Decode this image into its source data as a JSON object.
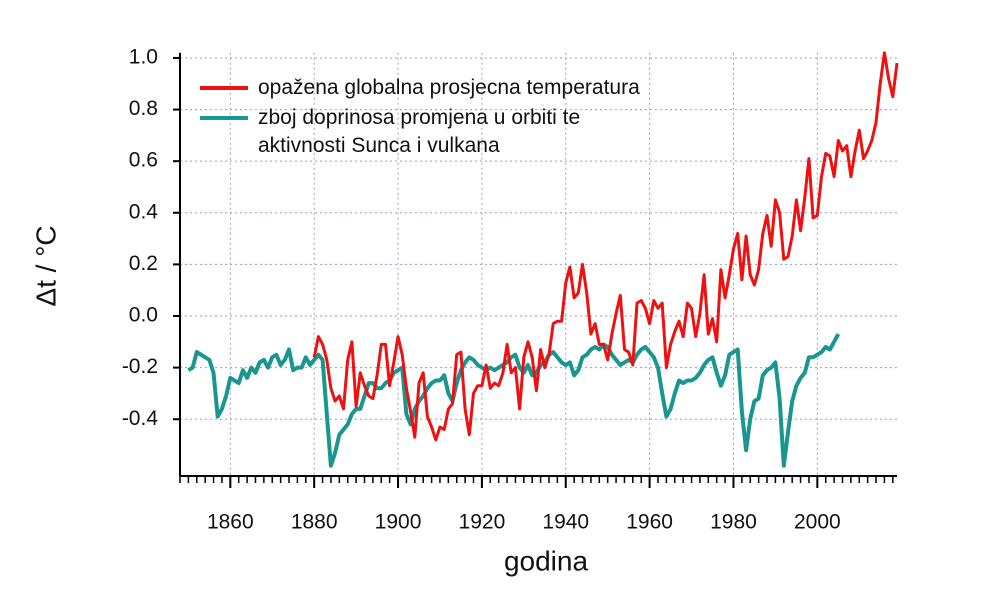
{
  "chart_data": {
    "type": "line",
    "x_label": "godina",
    "y_label": "Δt / °C",
    "x": [
      1850,
      1851,
      1852,
      1853,
      1854,
      1855,
      1856,
      1857,
      1858,
      1859,
      1860,
      1861,
      1862,
      1863,
      1864,
      1865,
      1866,
      1867,
      1868,
      1869,
      1870,
      1871,
      1872,
      1873,
      1874,
      1875,
      1876,
      1877,
      1878,
      1879,
      1880,
      1881,
      1882,
      1883,
      1884,
      1885,
      1886,
      1887,
      1888,
      1889,
      1890,
      1891,
      1892,
      1893,
      1894,
      1895,
      1896,
      1897,
      1898,
      1899,
      1900,
      1901,
      1902,
      1903,
      1904,
      1905,
      1906,
      1907,
      1908,
      1909,
      1910,
      1911,
      1912,
      1913,
      1914,
      1915,
      1916,
      1917,
      1918,
      1919,
      1920,
      1921,
      1922,
      1923,
      1924,
      1925,
      1926,
      1927,
      1928,
      1929,
      1930,
      1931,
      1932,
      1933,
      1934,
      1935,
      1936,
      1937,
      1938,
      1939,
      1940,
      1941,
      1942,
      1943,
      1944,
      1945,
      1946,
      1947,
      1948,
      1949,
      1950,
      1951,
      1952,
      1953,
      1954,
      1955,
      1956,
      1957,
      1958,
      1959,
      1960,
      1961,
      1962,
      1963,
      1964,
      1965,
      1966,
      1967,
      1968,
      1969,
      1970,
      1971,
      1972,
      1973,
      1974,
      1975,
      1976,
      1977,
      1978,
      1979,
      1980,
      1981,
      1982,
      1983,
      1984,
      1985,
      1986,
      1987,
      1988,
      1989,
      1990,
      1991,
      1992,
      1993,
      1994,
      1995,
      1996,
      1997,
      1998,
      1999,
      2000,
      2001,
      2002,
      2003,
      2004,
      2005,
      2006,
      2007,
      2008,
      2009,
      2010,
      2011,
      2012,
      2013,
      2014,
      2015,
      2016,
      2017,
      2018,
      2019
    ],
    "series": [
      {
        "name": "opažena globalna prosjecna temperatura",
        "color": "#ee1111",
        "values": [
          null,
          null,
          null,
          null,
          null,
          null,
          null,
          null,
          null,
          null,
          null,
          null,
          null,
          null,
          null,
          null,
          null,
          null,
          null,
          null,
          null,
          null,
          null,
          null,
          null,
          null,
          null,
          null,
          null,
          null,
          -0.16,
          -0.08,
          -0.11,
          -0.17,
          -0.28,
          -0.33,
          -0.31,
          -0.36,
          -0.17,
          -0.1,
          -0.35,
          -0.22,
          -0.27,
          -0.31,
          -0.32,
          -0.23,
          -0.11,
          -0.11,
          -0.27,
          -0.18,
          -0.08,
          -0.15,
          -0.28,
          -0.37,
          -0.47,
          -0.26,
          -0.22,
          -0.39,
          -0.43,
          -0.48,
          -0.43,
          -0.44,
          -0.36,
          -0.34,
          -0.15,
          -0.14,
          -0.36,
          -0.46,
          -0.3,
          -0.27,
          -0.27,
          -0.19,
          -0.28,
          -0.26,
          -0.27,
          -0.22,
          -0.11,
          -0.22,
          -0.2,
          -0.36,
          -0.16,
          -0.1,
          -0.16,
          -0.29,
          -0.13,
          -0.2,
          -0.15,
          -0.03,
          -0.02,
          -0.02,
          0.13,
          0.19,
          0.07,
          0.09,
          0.2,
          0.09,
          -0.07,
          -0.03,
          -0.11,
          -0.11,
          -0.17,
          -0.07,
          0.01,
          0.08,
          -0.13,
          -0.14,
          -0.19,
          0.05,
          0.06,
          0.03,
          -0.03,
          0.06,
          0.03,
          0.05,
          -0.2,
          -0.11,
          -0.06,
          -0.02,
          -0.08,
          0.05,
          0.03,
          -0.08,
          0.01,
          0.16,
          -0.07,
          -0.01,
          -0.1,
          0.18,
          0.07,
          0.16,
          0.26,
          0.32,
          0.14,
          0.31,
          0.16,
          0.12,
          0.18,
          0.32,
          0.39,
          0.27,
          0.45,
          0.4,
          0.22,
          0.23,
          0.31,
          0.45,
          0.33,
          0.46,
          0.61,
          0.38,
          0.39,
          0.54,
          0.63,
          0.62,
          0.54,
          0.68,
          0.64,
          0.66,
          0.54,
          0.64,
          0.72,
          0.61,
          0.64,
          0.68,
          0.75,
          0.9,
          1.02,
          0.92,
          0.85,
          0.98
        ]
      },
      {
        "name": "zboj doprinosa promjena u orbiti te\naktivnosti Sunca i vulkana",
        "color": "#1a9690",
        "values": [
          -0.21,
          -0.2,
          -0.14,
          -0.15,
          -0.16,
          -0.17,
          -0.22,
          -0.39,
          -0.36,
          -0.31,
          -0.24,
          -0.25,
          -0.26,
          -0.21,
          -0.24,
          -0.2,
          -0.22,
          -0.18,
          -0.17,
          -0.2,
          -0.16,
          -0.15,
          -0.19,
          -0.17,
          -0.13,
          -0.21,
          -0.2,
          -0.2,
          -0.16,
          -0.19,
          -0.17,
          -0.15,
          -0.17,
          -0.38,
          -0.58,
          -0.53,
          -0.46,
          -0.44,
          -0.42,
          -0.38,
          -0.36,
          -0.36,
          -0.31,
          -0.26,
          -0.26,
          -0.28,
          -0.28,
          -0.26,
          -0.25,
          -0.22,
          -0.21,
          -0.2,
          -0.38,
          -0.42,
          -0.36,
          -0.33,
          -0.31,
          -0.28,
          -0.26,
          -0.25,
          -0.25,
          -0.23,
          -0.3,
          -0.33,
          -0.26,
          -0.21,
          -0.18,
          -0.16,
          -0.17,
          -0.19,
          -0.2,
          -0.21,
          -0.2,
          -0.21,
          -0.2,
          -0.19,
          -0.18,
          -0.16,
          -0.15,
          -0.2,
          -0.22,
          -0.19,
          -0.23,
          -0.22,
          -0.19,
          -0.18,
          -0.15,
          -0.14,
          -0.16,
          -0.18,
          -0.19,
          -0.18,
          -0.23,
          -0.21,
          -0.16,
          -0.15,
          -0.13,
          -0.12,
          -0.13,
          -0.11,
          -0.12,
          -0.15,
          -0.17,
          -0.19,
          -0.18,
          -0.17,
          -0.18,
          -0.15,
          -0.13,
          -0.12,
          -0.14,
          -0.16,
          -0.2,
          -0.3,
          -0.39,
          -0.36,
          -0.3,
          -0.25,
          -0.26,
          -0.25,
          -0.25,
          -0.24,
          -0.22,
          -0.19,
          -0.17,
          -0.16,
          -0.22,
          -0.27,
          -0.23,
          -0.15,
          -0.14,
          -0.13,
          -0.37,
          -0.52,
          -0.4,
          -0.33,
          -0.32,
          -0.23,
          -0.21,
          -0.2,
          -0.18,
          -0.32,
          -0.58,
          -0.45,
          -0.33,
          -0.27,
          -0.24,
          -0.22,
          -0.16,
          -0.16,
          -0.15,
          -0.14,
          -0.12,
          -0.13,
          -0.1,
          -0.07,
          null,
          null,
          null,
          null,
          null,
          null,
          null,
          null,
          null,
          null,
          null,
          null,
          null,
          null
        ]
      }
    ],
    "xlim": [
      1848,
      2019
    ],
    "xticks": [
      1860,
      1880,
      1900,
      1920,
      1940,
      1960,
      1980,
      2000
    ],
    "ylim": [
      -0.61,
      1.02
    ],
    "yticks": [
      -0.4,
      -0.2,
      {
        "value": 0,
        "label": "0.0"
      },
      0.2,
      0.4,
      0.6,
      0.8,
      {
        "value": 1,
        "label": "1.0"
      }
    ],
    "grid": true
  }
}
